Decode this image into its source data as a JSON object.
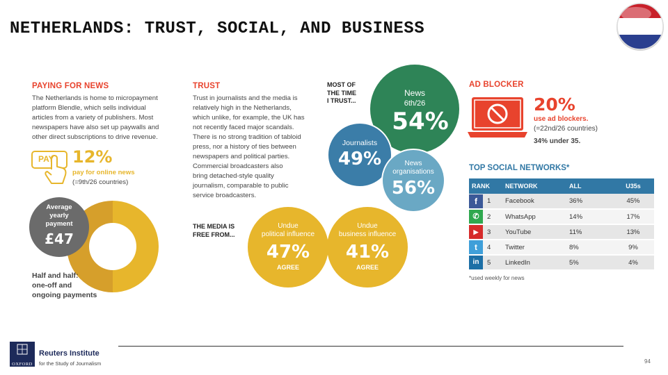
{
  "title": "NETHERLANDS: TRUST, SOCIAL, AND BUSINESS",
  "colors": {
    "accent": "#e8432d",
    "green": "#2e8457",
    "blue": "#3b7da8",
    "lightblue": "#6aa8c4",
    "gold": "#e7b62c",
    "darkgold": "#d69f2b",
    "grey": "#6b6b6b",
    "table_header": "#3178a5"
  },
  "paying": {
    "heading": "PAYING FOR NEWS",
    "text": [
      "The Netherlands is home to micropayment",
      "platform Blendle, which sells individual",
      "articles from a variety of publishers. Most",
      "newspapers have also set up paywalls and",
      "other direct subscriptions to drive revenue."
    ],
    "pay_label": "PAY",
    "pay_pct": "12%",
    "pay_desc": "pay for online news",
    "pay_rank": "(=9th/26 countries)",
    "avg_label": [
      "Average",
      "yearly",
      "payment"
    ],
    "avg_value": "£47",
    "donut": {
      "one_off_share": 50,
      "ongoing_share": 50
    },
    "half_text": [
      "Half and half:",
      "one-off and",
      "ongoing payments"
    ]
  },
  "trust": {
    "heading": "TRUST",
    "text": [
      "Trust in journalists and the media is",
      "relatively high in the Netherlands,",
      "which unlike, for example, the UK has",
      "not recently faced major scandals.",
      "There is no strong tradition of tabloid",
      "press, nor a history of ties between",
      "newspapers and political parties.",
      "Commercial broadcasters also",
      "bring detached-style quality",
      "journalism, comparable to public",
      "service broadcasters."
    ]
  },
  "most_time": {
    "label": [
      "MOST OF",
      "THE TIME",
      "I TRUST..."
    ],
    "news_label": "News",
    "news_rank": "6th/26",
    "news_pct": "54%",
    "journalists_label": "Journalists",
    "journalists_pct": "49%",
    "orgs_label": [
      "News",
      "organisations"
    ],
    "orgs_pct": "56%"
  },
  "free_from": {
    "label": [
      "THE MEDIA IS",
      "FREE FROM..."
    ],
    "political_label": [
      "Undue",
      "political influence"
    ],
    "political_pct": "47%",
    "business_label": [
      "Undue",
      "business influence"
    ],
    "business_pct": "41%",
    "agree": "AGREE"
  },
  "adblock": {
    "heading": "AD BLOCKER",
    "pct": "20%",
    "desc": "use ad blockers.",
    "rank": "(=22nd/26 countries)",
    "under35": "34% under 35."
  },
  "social": {
    "heading": "TOP SOCIAL NETWORKS*",
    "columns": [
      "RANK",
      "NETWORK",
      "ALL",
      "U35s"
    ],
    "rows": [
      {
        "icon": "facebook-icon",
        "glyph": "f",
        "color": "#3b5998",
        "rank": "1",
        "network": "Facebook",
        "all": "36%",
        "u35": "45%"
      },
      {
        "icon": "whatsapp-icon",
        "glyph": "✆",
        "color": "#2fa84f",
        "rank": "2",
        "network": "WhatsApp",
        "all": "14%",
        "u35": "17%"
      },
      {
        "icon": "youtube-icon",
        "glyph": "▶",
        "color": "#d62b2b",
        "rank": "3",
        "network": "YouTube",
        "all": "11%",
        "u35": "13%"
      },
      {
        "icon": "twitter-icon",
        "glyph": "t",
        "color": "#3f9fd9",
        "rank": "4",
        "network": "Twitter",
        "all": "8%",
        "u35": "9%"
      },
      {
        "icon": "linkedin-icon",
        "glyph": "in",
        "color": "#1c6fa6",
        "rank": "5",
        "network": "LinkedIn",
        "all": "5%",
        "u35": "4%"
      }
    ],
    "footnote": "*used weekly for news"
  },
  "footer": {
    "logo_text": "OXFORD",
    "institute": "Reuters Institute",
    "sub": "for the Study of Journalism",
    "page_number": "94"
  }
}
